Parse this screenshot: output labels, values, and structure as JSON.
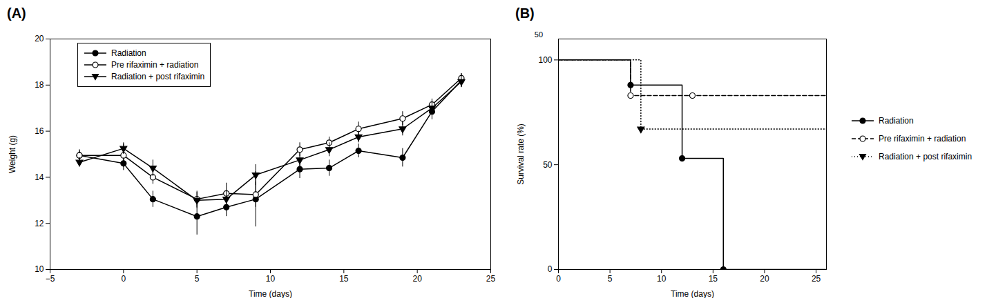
{
  "chart_data": [
    {
      "type": "line",
      "title": "(A)",
      "xlabel": "Time (days)",
      "ylabel": "Weight (g)",
      "xlim": [
        -5,
        25
      ],
      "ylim": [
        10,
        20
      ],
      "xticks": [
        -5,
        0,
        5,
        10,
        15,
        20,
        25
      ],
      "yticks": [
        10,
        12,
        14,
        16,
        18,
        20
      ],
      "legend": "upper left",
      "series": [
        {
          "name": "Radiation",
          "color": "#000000",
          "marker": "circle",
          "line_style": "solid",
          "x": [
            -3,
            0,
            2,
            5,
            7,
            9,
            12,
            14,
            16,
            19,
            21,
            23
          ],
          "values": [
            14.95,
            14.6,
            13.05,
            12.3,
            12.7,
            13.05,
            14.35,
            14.4,
            15.15,
            14.85,
            16.85,
            18.2
          ],
          "yerr": [
            0.25,
            0.3,
            0.35,
            0.8,
            0.4,
            1.2,
            0.4,
            0.35,
            0.3,
            0.4,
            0.35,
            0.3
          ]
        },
        {
          "name": "Pre rifaximin + radiation",
          "color": "#000000",
          "marker": "circle-open",
          "line_style": "solid",
          "x": [
            -3,
            0,
            2,
            5,
            7,
            9,
            12,
            14,
            16,
            19,
            21,
            23
          ],
          "values": [
            14.95,
            14.95,
            14.0,
            13.05,
            13.3,
            13.25,
            15.2,
            15.5,
            16.1,
            16.55,
            17.15,
            18.3
          ],
          "yerr": [
            0.2,
            0.5,
            0.3,
            0.35,
            0.45,
            0.55,
            0.3,
            0.25,
            0.3,
            0.3,
            0.25,
            0.2
          ]
        },
        {
          "name": "Radiation + post rifaximin",
          "color": "#000000",
          "marker": "triangle-down",
          "line_style": "solid",
          "x": [
            -3,
            0,
            2,
            5,
            7,
            9,
            12,
            14,
            16,
            19,
            21,
            23
          ],
          "values": [
            14.65,
            15.25,
            14.4,
            13.0,
            13.05,
            14.1,
            14.75,
            15.2,
            15.75,
            16.1,
            17.0,
            18.15
          ],
          "yerr": [
            0.2,
            0.25,
            0.35,
            0.35,
            0.35,
            0.45,
            0.3,
            0.3,
            0.25,
            0.3,
            0.3,
            0.25
          ]
        }
      ]
    },
    {
      "type": "line",
      "title": "(B)",
      "xlabel": "Time (days)",
      "ylabel": "Survival rate (%)",
      "xlim": [
        0,
        26
      ],
      "ylim": [
        0,
        110
      ],
      "xticks": [
        0,
        5,
        10,
        15,
        20,
        25
      ],
      "yticks": [
        0,
        50,
        100
      ],
      "legend": "right",
      "annotations": [
        {
          "text": "50",
          "x": -1.5,
          "y": 112
        }
      ],
      "series": [
        {
          "name": "Radiation",
          "color": "#000000",
          "marker": "circle",
          "line_style": "solid",
          "x": [
            0,
            7,
            7,
            12,
            12,
            16,
            16,
            26
          ],
          "values": [
            100,
            100,
            88,
            88,
            53,
            53,
            0,
            0
          ],
          "marker_x": [
            7,
            12,
            16
          ],
          "marker_y": [
            88,
            53,
            0
          ]
        },
        {
          "name": "Pre rifaximin + radiation",
          "color": "#000000",
          "marker": "circle-open",
          "line_style": "dashed",
          "x": [
            0,
            7,
            7,
            13,
            13,
            26
          ],
          "values": [
            100,
            100,
            83,
            83,
            83,
            83
          ],
          "marker_x": [
            7,
            13
          ],
          "marker_y": [
            83,
            83
          ]
        },
        {
          "name": "Radiation + post rifaximin",
          "color": "#000000",
          "marker": "triangle-down",
          "line_style": "dotted",
          "x": [
            0,
            8,
            8,
            26
          ],
          "values": [
            100,
            100,
            67,
            67
          ],
          "marker_x": [
            8
          ],
          "marker_y": [
            67
          ]
        }
      ]
    }
  ]
}
